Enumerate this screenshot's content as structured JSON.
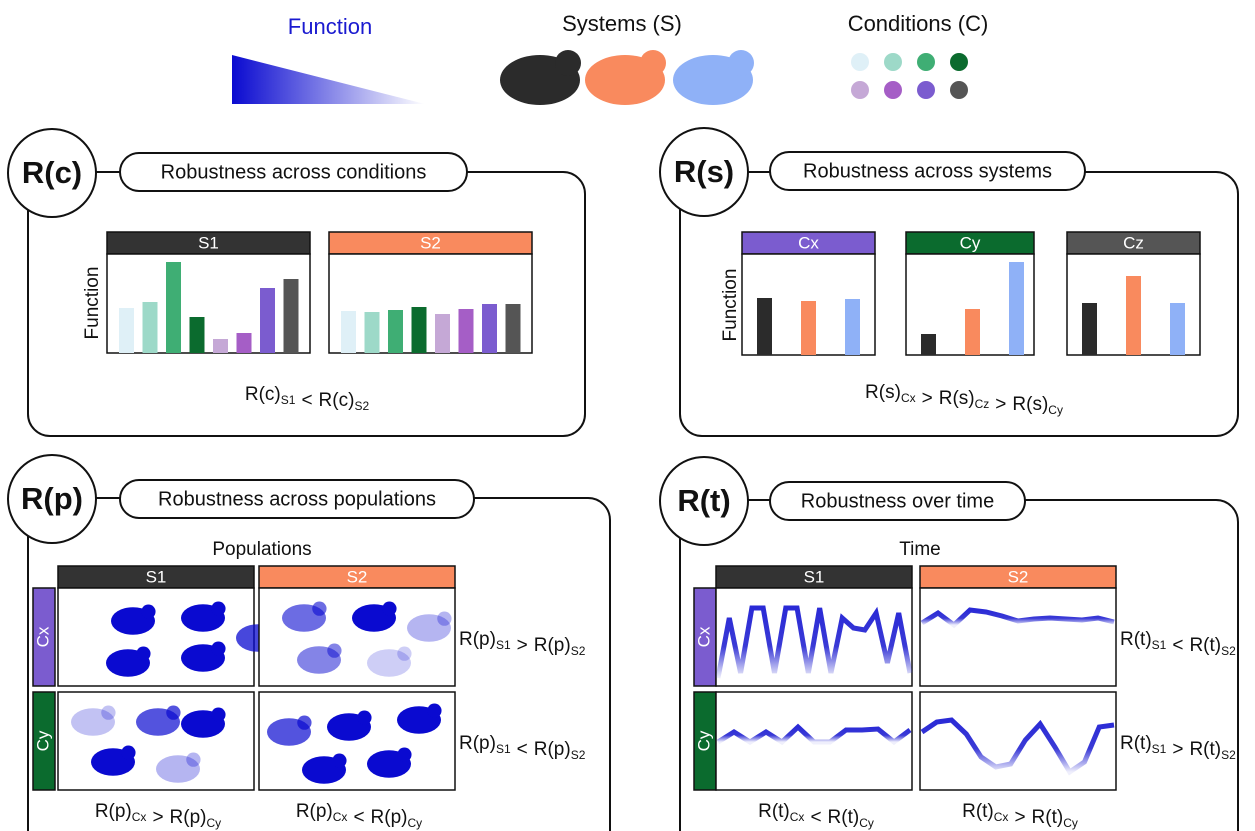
{
  "legend": {
    "function": "Function",
    "systems": "Systems (S)",
    "conditions": "Conditions (C)"
  },
  "panels": [
    {
      "label": "R(c)",
      "title": "Robustness across conditions",
      "columns": [
        "S1",
        "S2"
      ],
      "y_label": "Function",
      "formula": [
        {
          "text": "R(c)",
          "sub": "S1"
        },
        {
          "text": "<"
        },
        {
          "text": "R(c)",
          "sub": "S2"
        }
      ]
    },
    {
      "label": "R(s)",
      "title": "Robustness across systems",
      "columns": [
        "Cx",
        "Cy",
        "Cz"
      ],
      "y_label": "Function",
      "formula": [
        {
          "text": "R(s)",
          "sub": "Cx"
        },
        {
          "text": ">"
        },
        {
          "text": "R(s)",
          "sub": "Cz"
        },
        {
          "text": ">"
        },
        {
          "text": "R(s)",
          "sub": "Cy"
        }
      ]
    },
    {
      "label": "R(p)",
      "title": "Robustness across populations",
      "axis_label": "Populations",
      "columns": [
        "S1",
        "S2"
      ],
      "rows": [
        "Cx",
        "Cy"
      ],
      "row_formulas": [
        [
          {
            "text": "R(p)",
            "sub": "S1"
          },
          {
            "text": ">"
          },
          {
            "text": "R(p)",
            "sub": "S2"
          }
        ],
        [
          {
            "text": "R(p)",
            "sub": "S1"
          },
          {
            "text": "<"
          },
          {
            "text": "R(p)",
            "sub": "S2"
          }
        ]
      ],
      "column_formulas": [
        [
          {
            "text": "R(p)",
            "sub": "Cx"
          },
          {
            "text": ">"
          },
          {
            "text": "R(p)",
            "sub": "Cy"
          }
        ],
        [
          {
            "text": "R(p)",
            "sub": "Cx"
          },
          {
            "text": "<"
          },
          {
            "text": "R(p)",
            "sub": "Cy"
          }
        ]
      ]
    },
    {
      "label": "R(t)",
      "title": "Robustness over time",
      "axis_label": "Time",
      "columns": [
        "S1",
        "S2"
      ],
      "rows": [
        "Cx",
        "Cy"
      ],
      "row_formulas": [
        [
          {
            "text": "R(t)",
            "sub": "S1"
          },
          {
            "text": "<"
          },
          {
            "text": "R(t)",
            "sub": "S2"
          }
        ],
        [
          {
            "text": "R(t)",
            "sub": "S1"
          },
          {
            "text": ">"
          },
          {
            "text": "R(t)",
            "sub": "S2"
          }
        ]
      ],
      "column_formulas": [
        [
          {
            "text": "R(t)",
            "sub": "Cx"
          },
          {
            "text": "<"
          },
          {
            "text": "R(t)",
            "sub": "Cy"
          }
        ],
        [
          {
            "text": "R(t)",
            "sub": "Cx"
          },
          {
            "text": ">"
          },
          {
            "text": "R(t)",
            "sub": "Cy"
          }
        ]
      ]
    }
  ]
}
